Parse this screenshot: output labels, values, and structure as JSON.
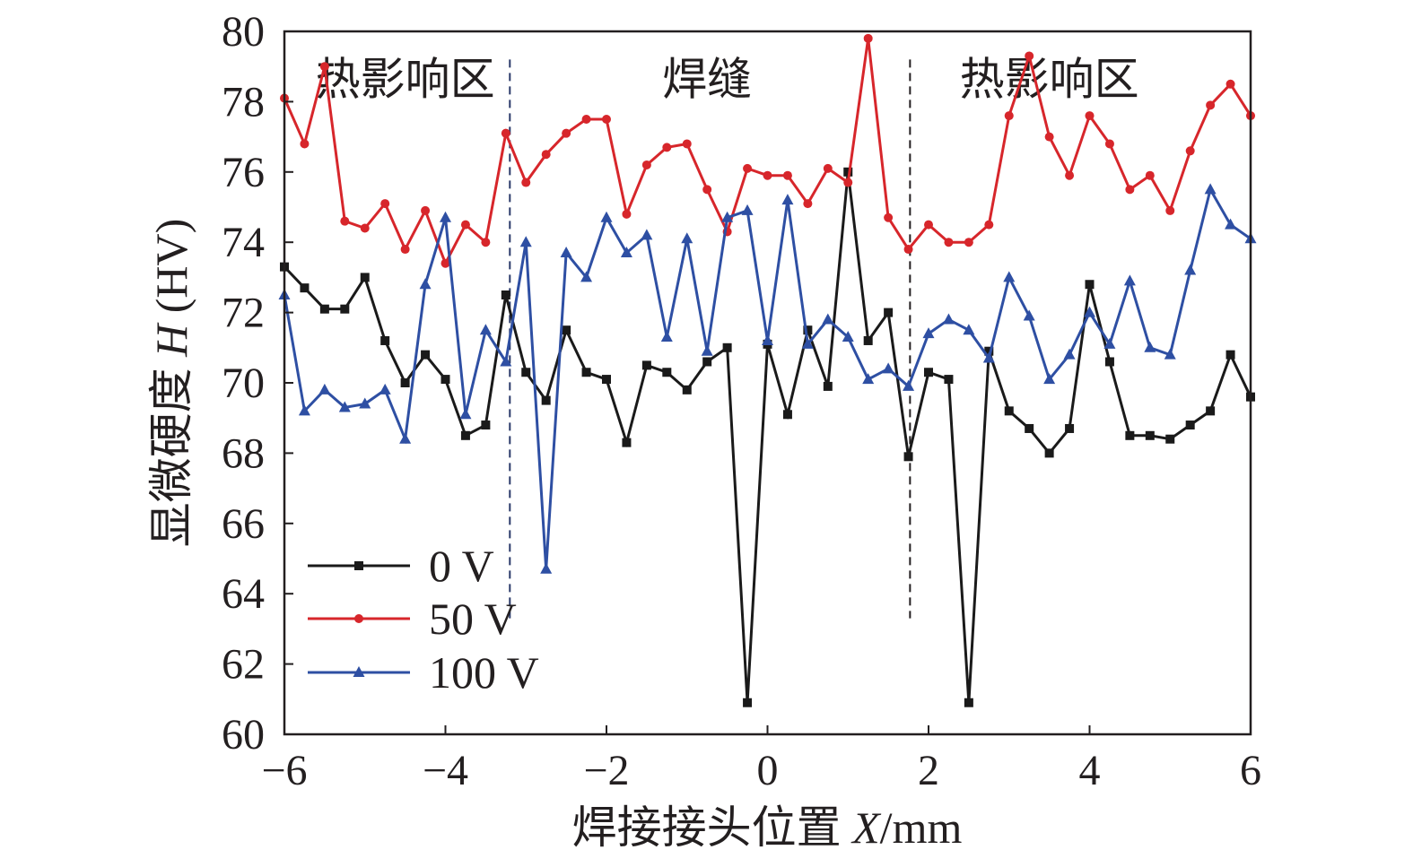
{
  "chart_data": {
    "type": "line",
    "title": "",
    "xlabel_prefix": "焊接接头位置 ",
    "xlabel_var": "X",
    "xlabel_suffix": "/mm",
    "ylabel_prefix": "显微硬度 ",
    "ylabel_var": "H",
    "ylabel_suffix": " (HV)",
    "xlim": [
      -6,
      6
    ],
    "ylim": [
      60,
      80
    ],
    "xticks": [
      -6,
      -4,
      -2,
      0,
      2,
      4,
      6
    ],
    "xtick_labels": [
      "−6",
      "−4",
      "−2",
      "0",
      "2",
      "4",
      "6"
    ],
    "yticks": [
      60,
      62,
      64,
      66,
      68,
      70,
      72,
      74,
      76,
      78,
      80
    ],
    "ytick_labels": [
      "60",
      "62",
      "64",
      "66",
      "68",
      "70",
      "72",
      "74",
      "76",
      "78",
      "80"
    ],
    "grid": false,
    "legend_position": "bottom-left",
    "x": [
      -6,
      -5.75,
      -5.5,
      -5.25,
      -5,
      -4.75,
      -4.5,
      -4.25,
      -4,
      -3.75,
      -3.5,
      -3.25,
      -3,
      -2.75,
      -2.5,
      -2.25,
      -2,
      -1.75,
      -1.5,
      -1.25,
      -1,
      -0.75,
      -0.5,
      -0.25,
      0,
      0.25,
      0.5,
      0.75,
      1,
      1.25,
      1.5,
      1.75,
      2,
      2.25,
      2.5,
      2.75,
      3,
      3.25,
      3.5,
      3.75,
      4,
      4.25,
      4.5,
      4.75,
      5,
      5.25,
      5.5,
      5.75,
      6
    ],
    "series": [
      {
        "name": "0 V",
        "color": "#1a1a1a",
        "marker": "square",
        "values": [
          73.3,
          72.7,
          72.1,
          72.1,
          73.0,
          71.2,
          70.0,
          70.8,
          70.1,
          68.5,
          68.8,
          72.5,
          70.3,
          69.5,
          71.5,
          70.3,
          70.1,
          68.3,
          70.5,
          70.3,
          69.8,
          70.6,
          71.0,
          60.9,
          71.1,
          69.1,
          71.5,
          69.9,
          76.0,
          71.2,
          72.0,
          67.9,
          70.3,
          70.1,
          60.9,
          70.9,
          69.2,
          68.7,
          68.0,
          68.7,
          72.8,
          70.6,
          68.5,
          68.5,
          68.4,
          68.8,
          69.2,
          70.8,
          69.6
        ]
      },
      {
        "name": "50 V",
        "color": "#d7262b",
        "marker": "circle",
        "values": [
          78.1,
          76.8,
          79.0,
          74.6,
          74.4,
          75.1,
          73.8,
          74.9,
          73.4,
          74.5,
          74.0,
          77.1,
          75.7,
          76.5,
          77.1,
          77.5,
          77.5,
          74.8,
          76.2,
          76.7,
          76.8,
          75.5,
          74.3,
          76.1,
          75.9,
          75.9,
          75.1,
          76.1,
          75.7,
          79.8,
          74.7,
          73.8,
          74.5,
          74.0,
          74.0,
          74.5,
          77.6,
          79.3,
          77.0,
          75.9,
          77.6,
          76.8,
          75.5,
          75.9,
          74.9,
          76.6,
          77.9,
          78.5,
          77.6
        ]
      },
      {
        "name": "100 V",
        "color": "#2e4fa3",
        "marker": "triangle",
        "values": [
          72.5,
          69.2,
          69.8,
          69.3,
          69.4,
          69.8,
          68.4,
          72.8,
          74.7,
          69.1,
          71.5,
          70.6,
          74.0,
          64.7,
          73.7,
          73.0,
          74.7,
          73.7,
          74.2,
          71.3,
          74.1,
          70.9,
          74.7,
          74.9,
          71.2,
          75.2,
          71.1,
          71.8,
          71.3,
          70.1,
          70.4,
          69.9,
          71.4,
          71.8,
          71.5,
          70.7,
          73.0,
          71.9,
          70.1,
          70.8,
          72.0,
          71.1,
          72.9,
          71.0,
          70.8,
          73.2,
          75.5,
          74.5,
          74.1
        ]
      }
    ],
    "boundaries_x": [
      -3.2,
      1.77
    ],
    "annotations": [
      {
        "text": "热影响区",
        "x": -4.5,
        "y": 78.2
      },
      {
        "text": "焊缝",
        "x": -0.75,
        "y": 78.2
      },
      {
        "text": "热影响区",
        "x": 3.5,
        "y": 78.2
      }
    ]
  }
}
